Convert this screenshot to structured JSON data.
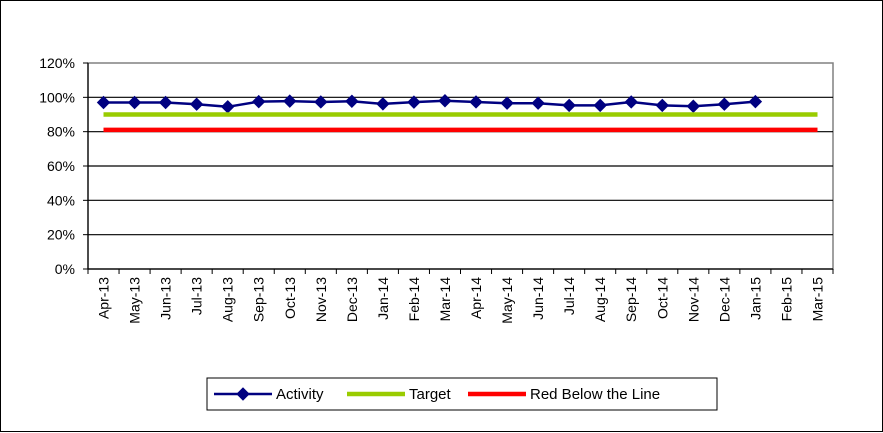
{
  "chart_data": {
    "type": "line",
    "title": "",
    "xlabel": "",
    "ylabel": "",
    "categories": [
      "Apr-13",
      "May-13",
      "Jun-13",
      "Jul-13",
      "Aug-13",
      "Sep-13",
      "Oct-13",
      "Nov-13",
      "Dec-13",
      "Jan-14",
      "Feb-14",
      "Mar-14",
      "Apr-14",
      "May-14",
      "Jun-14",
      "Jul-14",
      "Aug-14",
      "Sep-14",
      "Oct-14",
      "Nov-14",
      "Dec-14",
      "Jan-15",
      "Feb-15",
      "Mar-15"
    ],
    "y_ticks": [
      "0%",
      "20%",
      "40%",
      "60%",
      "80%",
      "100%",
      "120%"
    ],
    "ylim": [
      0,
      1.2
    ],
    "grid": true,
    "legend_position": "bottom",
    "series": [
      {
        "name": "Activity",
        "color": "#000080",
        "marker": "diamond",
        "values": [
          0.97,
          0.97,
          0.97,
          0.96,
          0.945,
          0.975,
          0.978,
          0.973,
          0.977,
          0.962,
          0.972,
          0.98,
          0.973,
          0.966,
          0.966,
          0.953,
          0.953,
          0.973,
          0.953,
          0.948,
          0.96,
          0.975,
          null,
          null
        ]
      },
      {
        "name": "Target",
        "color": "#99CC00",
        "marker": "none",
        "values": [
          0.9,
          0.9,
          0.9,
          0.9,
          0.9,
          0.9,
          0.9,
          0.9,
          0.9,
          0.9,
          0.9,
          0.9,
          0.9,
          0.9,
          0.9,
          0.9,
          0.9,
          0.9,
          0.9,
          0.9,
          0.9,
          0.9,
          0.9,
          0.9
        ]
      },
      {
        "name": "Red Below the Line",
        "color": "#FF0000",
        "marker": "none",
        "values": [
          0.81,
          0.81,
          0.81,
          0.81,
          0.81,
          0.81,
          0.81,
          0.81,
          0.81,
          0.81,
          0.81,
          0.81,
          0.81,
          0.81,
          0.81,
          0.81,
          0.81,
          0.81,
          0.81,
          0.81,
          0.81,
          0.81,
          0.81,
          0.81
        ]
      }
    ]
  }
}
